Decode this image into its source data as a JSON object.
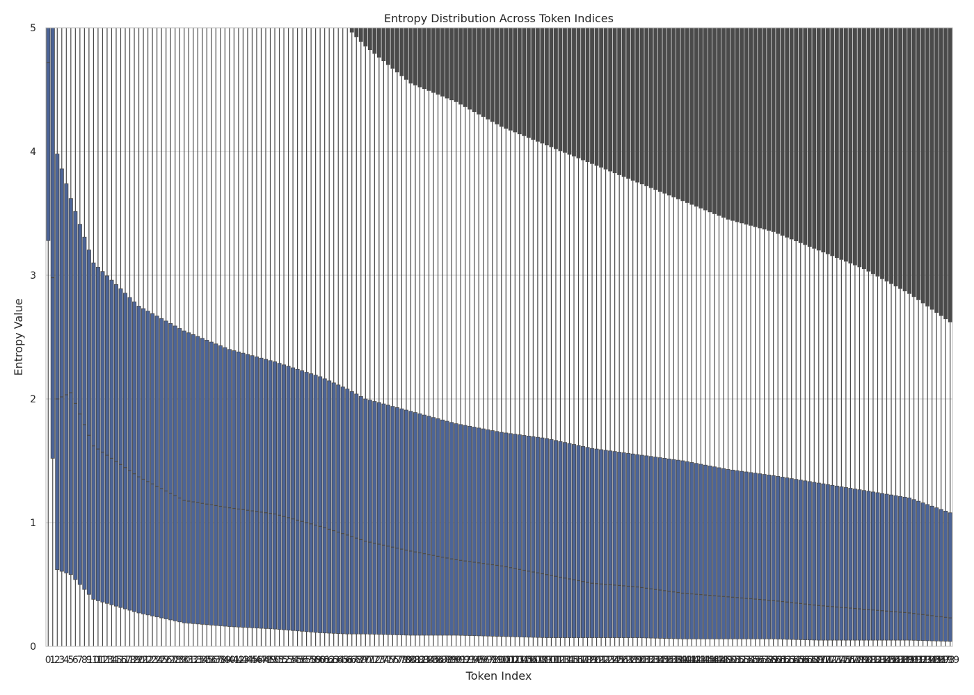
{
  "chart_data": {
    "type": "box",
    "title": "Entropy Distribution Across Token Indices",
    "xlabel": "Token Index",
    "ylabel": "Entropy Value",
    "ylim": [
      0,
      5
    ],
    "yticks": [
      0,
      1,
      2,
      3,
      4,
      5
    ],
    "grid": true,
    "x_categories": {
      "start": 0,
      "end": 199,
      "step": 1
    },
    "box_color": "#4c6497",
    "line_color": "#4a4a4a",
    "background_color": "#ffffff",
    "grid_color": "#cccccc",
    "anchors": [
      {
        "x": 0,
        "q1": 3.28,
        "median": 4.72,
        "q3": 5.0,
        "upper_whisker": 5.0,
        "outlier_top": 5.0
      },
      {
        "x": 1,
        "q1": 1.52,
        "median": 2.98,
        "q3": 5.0,
        "upper_whisker": 5.0,
        "outlier_top": 5.0
      },
      {
        "x": 2,
        "q1": 0.62,
        "median": 2.0,
        "q3": 3.98,
        "upper_whisker": 5.0,
        "outlier_top": 5.0
      },
      {
        "x": 5,
        "q1": 0.58,
        "median": 2.05,
        "q3": 3.62,
        "upper_whisker": 5.0,
        "outlier_top": 5.0
      },
      {
        "x": 10,
        "q1": 0.38,
        "median": 1.62,
        "q3": 3.1,
        "upper_whisker": 5.0,
        "outlier_top": 5.0
      },
      {
        "x": 20,
        "q1": 0.27,
        "median": 1.37,
        "q3": 2.75,
        "upper_whisker": 5.0,
        "outlier_top": 5.0
      },
      {
        "x": 30,
        "q1": 0.19,
        "median": 1.18,
        "q3": 2.55,
        "upper_whisker": 5.0,
        "outlier_top": 5.0
      },
      {
        "x": 40,
        "q1": 0.16,
        "median": 1.12,
        "q3": 2.4,
        "upper_whisker": 5.0,
        "outlier_top": 5.0
      },
      {
        "x": 50,
        "q1": 0.14,
        "median": 1.07,
        "q3": 2.3,
        "upper_whisker": 5.0,
        "outlier_top": 5.0
      },
      {
        "x": 60,
        "q1": 0.11,
        "median": 0.97,
        "q3": 2.18,
        "upper_whisker": 5.0,
        "outlier_top": 5.0
      },
      {
        "x": 66,
        "q1": 0.1,
        "median": 0.9,
        "q3": 2.08,
        "upper_whisker": 5.0,
        "outlier_top": 5.0
      },
      {
        "x": 70,
        "q1": 0.1,
        "median": 0.85,
        "q3": 2.0,
        "upper_whisker": 4.85,
        "outlier_top": 5.0
      },
      {
        "x": 80,
        "q1": 0.09,
        "median": 0.77,
        "q3": 1.9,
        "upper_whisker": 4.55,
        "outlier_top": 5.0
      },
      {
        "x": 90,
        "q1": 0.09,
        "median": 0.7,
        "q3": 1.8,
        "upper_whisker": 4.4,
        "outlier_top": 5.0
      },
      {
        "x": 100,
        "q1": 0.08,
        "median": 0.65,
        "q3": 1.73,
        "upper_whisker": 4.2,
        "outlier_top": 5.0
      },
      {
        "x": 110,
        "q1": 0.07,
        "median": 0.58,
        "q3": 1.68,
        "upper_whisker": 4.05,
        "outlier_top": 5.0
      },
      {
        "x": 120,
        "q1": 0.07,
        "median": 0.51,
        "q3": 1.6,
        "upper_whisker": 3.9,
        "outlier_top": 5.0
      },
      {
        "x": 130,
        "q1": 0.07,
        "median": 0.48,
        "q3": 1.55,
        "upper_whisker": 3.75,
        "outlier_top": 5.0
      },
      {
        "x": 140,
        "q1": 0.06,
        "median": 0.43,
        "q3": 1.5,
        "upper_whisker": 3.6,
        "outlier_top": 5.0
      },
      {
        "x": 150,
        "q1": 0.06,
        "median": 0.4,
        "q3": 1.43,
        "upper_whisker": 3.45,
        "outlier_top": 5.0
      },
      {
        "x": 160,
        "q1": 0.06,
        "median": 0.37,
        "q3": 1.38,
        "upper_whisker": 3.35,
        "outlier_top": 5.0
      },
      {
        "x": 170,
        "q1": 0.05,
        "median": 0.33,
        "q3": 1.32,
        "upper_whisker": 3.2,
        "outlier_top": 5.0
      },
      {
        "x": 180,
        "q1": 0.05,
        "median": 0.3,
        "q3": 1.26,
        "upper_whisker": 3.05,
        "outlier_top": 5.0
      },
      {
        "x": 190,
        "q1": 0.05,
        "median": 0.27,
        "q3": 1.2,
        "upper_whisker": 2.85,
        "outlier_top": 5.0
      },
      {
        "x": 199,
        "q1": 0.04,
        "median": 0.23,
        "q3": 1.08,
        "upper_whisker": 2.62,
        "outlier_top": 5.0
      }
    ]
  }
}
